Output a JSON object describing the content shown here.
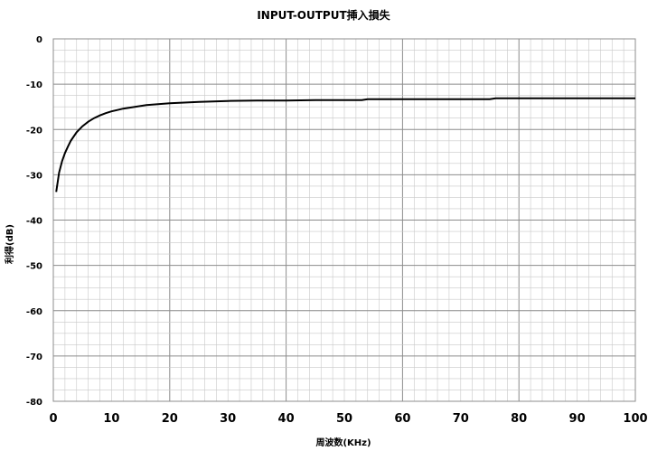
{
  "chart_data": {
    "type": "line",
    "title": "INPUT-OUTPUT挿入損失",
    "xlabel": "周波数(KHz)",
    "ylabel": "利得(dB)",
    "xlim": [
      0,
      100
    ],
    "ylim": [
      -80,
      0
    ],
    "x_ticks": [
      "0",
      "10",
      "20",
      "30",
      "40",
      "50",
      "60",
      "70",
      "80",
      "90",
      "100"
    ],
    "y_ticks": [
      "0",
      "-10",
      "-20",
      "-30",
      "-40",
      "-50",
      "-60",
      "-70",
      "-80"
    ],
    "grid": true,
    "legend": "none",
    "line_color": "#000000",
    "series": [
      {
        "x": [
          0.5,
          1,
          1.5,
          2,
          2.5,
          3,
          4,
          5,
          6,
          7,
          8,
          9,
          10,
          12,
          14,
          16,
          18,
          20,
          25,
          30,
          35,
          40,
          45,
          50,
          53,
          54,
          60,
          70,
          75,
          76,
          80,
          90,
          100
        ],
        "y": [
          -33.8,
          -29.5,
          -27,
          -25.2,
          -23.8,
          -22.5,
          -20.6,
          -19.3,
          -18.3,
          -17.5,
          -16.9,
          -16.4,
          -16.0,
          -15.4,
          -15.0,
          -14.6,
          -14.4,
          -14.2,
          -13.9,
          -13.7,
          -13.6,
          -13.6,
          -13.5,
          -13.5,
          -13.5,
          -13.3,
          -13.3,
          -13.3,
          -13.3,
          -13.1,
          -13.1,
          -13.1,
          -13.1
        ]
      }
    ]
  }
}
